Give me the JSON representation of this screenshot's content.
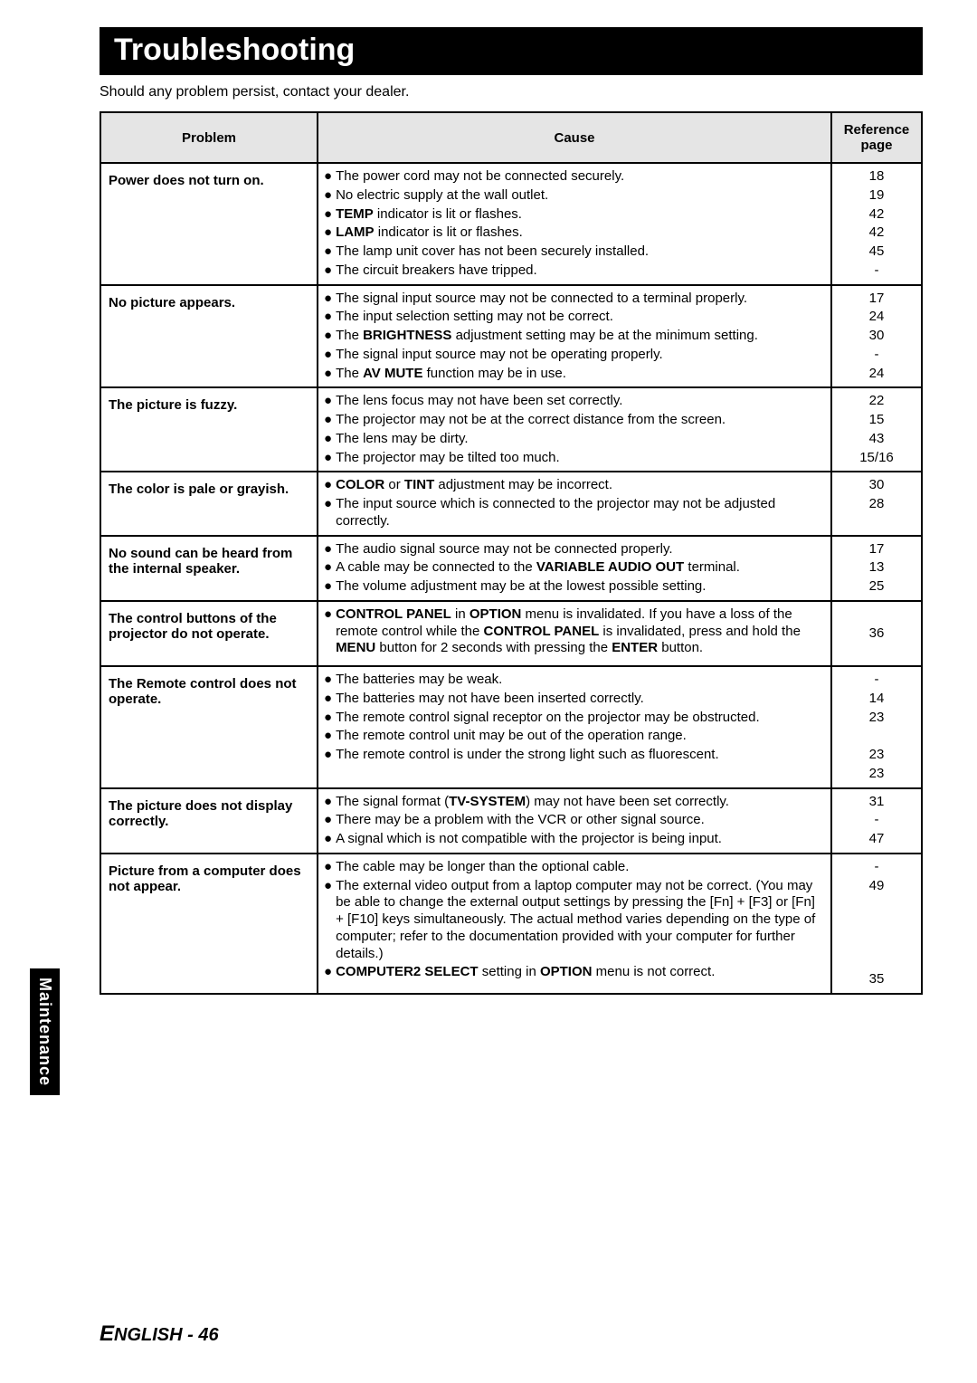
{
  "title": "Troubleshooting",
  "subtitle": "Should any problem persist, contact your dealer.",
  "headers": {
    "problem": "Problem",
    "cause": "Cause",
    "ref": "Reference page"
  },
  "sideTab": "Maintenance",
  "footer": {
    "cap": "E",
    "rest": "NGLISH - 46"
  },
  "rows": [
    {
      "problem": "Power does not turn on.",
      "causes": [
        {
          "html": "The power cord may not be connected securely."
        },
        {
          "html": "No electric supply at the wall outlet."
        },
        {
          "html": "<span class=\"bold\">TEMP</span> indicator is lit or flashes."
        },
        {
          "html": "<span class=\"bold\">LAMP</span> indicator is lit or flashes."
        },
        {
          "html": "The lamp unit cover has not been securely installed."
        },
        {
          "html": "The circuit breakers have tripped."
        }
      ],
      "refs": [
        "18",
        "19",
        "42",
        "42",
        "45",
        "-"
      ]
    },
    {
      "problem": "No picture appears.",
      "causes": [
        {
          "html": "The signal input source may not be connected to a terminal properly."
        },
        {
          "html": "The input selection setting may not be correct."
        },
        {
          "html": "The <span class=\"bold\">BRIGHTNESS</span> adjustment setting may be at the minimum setting."
        },
        {
          "html": "The signal input source may not be operating properly."
        },
        {
          "html": "The <span class=\"bold\">AV MUTE</span> function may be in use."
        }
      ],
      "refs": [
        "17",
        "24",
        "30",
        "-",
        "24"
      ]
    },
    {
      "problem": "The picture is fuzzy.",
      "causes": [
        {
          "html": "The lens focus may not have been set correctly."
        },
        {
          "html": "The projector may not be at the correct distance from the screen."
        },
        {
          "html": "The lens may be dirty."
        },
        {
          "html": "The projector may be tilted too much."
        }
      ],
      "refs": [
        "22",
        "15",
        "43",
        "15/16"
      ]
    },
    {
      "problem": "The color is pale or grayish.",
      "causes": [
        {
          "html": "<span class=\"bold\">COLOR</span> or <span class=\"bold\">TINT</span> adjustment may be incorrect."
        },
        {
          "html": "The input source which is connected to the projector may not be adjusted correctly."
        }
      ],
      "refs": [
        "30",
        "28"
      ]
    },
    {
      "problem": "No sound can be heard from the internal speaker.",
      "causes": [
        {
          "html": "The audio signal source may not be connected properly."
        },
        {
          "html": "A cable may be connected to the <span class=\"bold\">VARIABLE AUDIO OUT</span> terminal."
        },
        {
          "html": "The volume adjustment may be at the lowest possible setting."
        }
      ],
      "refs": [
        "17",
        "13",
        "25"
      ]
    },
    {
      "problem": "The control buttons of the projector do not operate.",
      "causes": [
        {
          "html": "<span class=\"bold\">CONTROL PANEL</span> in <span class=\"bold\">OPTION</span> menu is invalidated. If you have a loss of the remote control while the <span class=\"bold\">CONTROL PANEL</span> is invalidated, press and hold the <span class=\"bold\">MENU</span> button for 2 seconds with pressing the <span class=\"bold\">ENTER</span> button."
        }
      ],
      "refs": [
        "&nbsp;",
        "36",
        "&nbsp;"
      ],
      "refMode": "padded"
    },
    {
      "problem": "The Remote control does not operate.",
      "causes": [
        {
          "html": "The batteries may be weak."
        },
        {
          "html": "The batteries may not have been inserted correctly."
        },
        {
          "html": "The remote control signal receptor on the projector may be obstructed."
        },
        {
          "html": "The remote control unit may be out of the operation range."
        },
        {
          "html": "The remote control is under the strong light such as fluorescent."
        }
      ],
      "refs": [
        "-",
        "14",
        "23",
        "&nbsp;",
        "23",
        "23"
      ]
    },
    {
      "problem": "The picture does not display correctly.",
      "causes": [
        {
          "html": "The signal format (<span class=\"bold\">TV-SYSTEM</span>) may not have been set correctly."
        },
        {
          "html": "There may be a problem with the VCR or other signal source."
        },
        {
          "html": "A signal which is not compatible with the projector is being input."
        }
      ],
      "refs": [
        "31",
        "-",
        "47"
      ]
    },
    {
      "problem": "Picture from a computer does not appear.",
      "causes": [
        {
          "html": "The cable may be longer than the optional cable."
        },
        {
          "html": "The external video output from a laptop computer may not be correct. (You may be able to change the external output settings by pressing the [Fn] + [F3] or [Fn] + [F10] keys simultaneously. The actual method varies depending on the type of computer; refer to the documentation provided with your computer for further details.)"
        },
        {
          "html": "<span class=\"bold\">COMPUTER2 SELECT</span> setting in <span class=\"bold\">OPTION</span> menu is not correct."
        }
      ],
      "refs": [
        "-",
        "49",
        "&nbsp;",
        "&nbsp;",
        "&nbsp;",
        "&nbsp;",
        "35"
      ]
    }
  ]
}
